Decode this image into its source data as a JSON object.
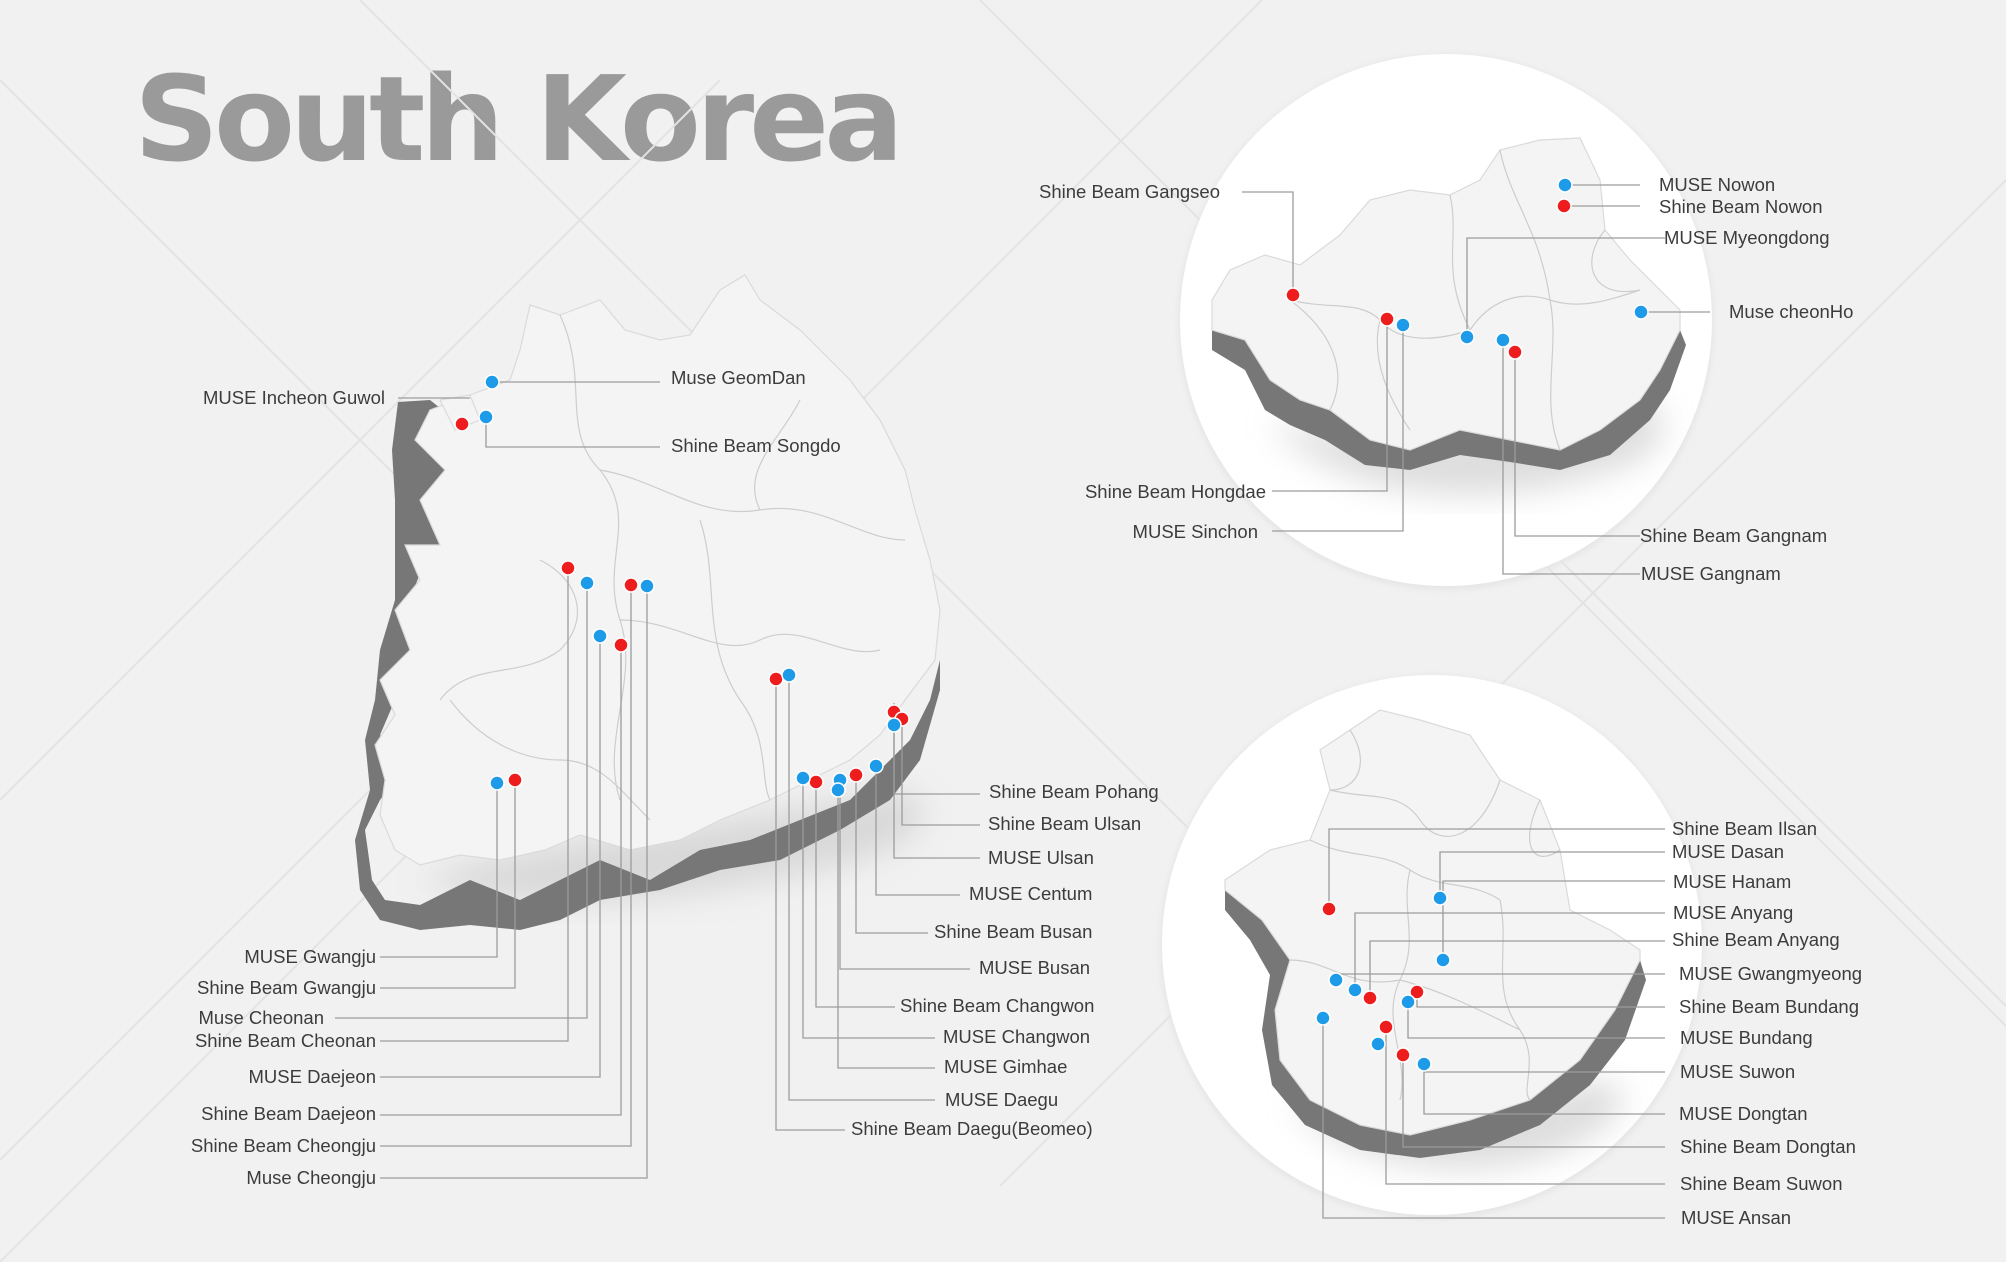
{
  "title": "South Korea",
  "legend_colors": {
    "muse": "#1e9be8",
    "shine_beam": "#ee1d1d"
  },
  "labels": {
    "muse_geomdan": "Muse GeomDan",
    "muse_incheon_guwol": "MUSE Incheon Guwol",
    "shine_beam_songdo": "Shine Beam Songdo",
    "shine_beam_pohang": "Shine Beam Pohang",
    "shine_beam_ulsan": "Shine Beam Ulsan",
    "muse_ulsan": "MUSE Ulsan",
    "muse_centum": "MUSE Centum",
    "shine_beam_busan": "Shine Beam Busan",
    "muse_busan": "MUSE Busan",
    "shine_beam_changwon": "Shine Beam Changwon",
    "muse_changwon": "MUSE Changwon",
    "muse_gimhae": "MUSE Gimhae",
    "muse_daegu": "MUSE Daegu",
    "shine_beam_daegu_beomeo": "Shine Beam Daegu(Beomeo)",
    "muse_gwangju": "MUSE Gwangju",
    "shine_beam_gwangju": "Shine Beam Gwangju",
    "muse_cheonan": "Muse Cheonan",
    "shine_beam_cheonan": "Shine Beam Cheonan",
    "muse_daejeon": "MUSE Daejeon",
    "shine_beam_daejeon": "Shine Beam Daejeon",
    "shine_beam_cheongju": "Shine Beam Cheongju",
    "muse_cheongju": "Muse Cheongju",
    "shine_beam_gangseo": "Shine Beam Gangseo",
    "muse_nowon": "MUSE Nowon",
    "shine_beam_nowon": "Shine Beam Nowon",
    "muse_myeongdong": "MUSE Myeongdong",
    "muse_cheonho": "Muse cheonHo",
    "shine_beam_hongdae": "Shine Beam Hongdae",
    "muse_sinchon": "MUSE Sinchon",
    "shine_beam_gangnam": "Shine Beam Gangnam",
    "muse_gangnam": "MUSE Gangnam",
    "shine_beam_ilsan": "Shine Beam Ilsan",
    "muse_dasan": "MUSE Dasan",
    "muse_hanam": "MUSE Hanam",
    "muse_anyang": "MUSE Anyang",
    "shine_beam_anyang": "Shine Beam Anyang",
    "muse_gwangmyeong": "MUSE Gwangmyeong",
    "shine_beam_bundang": "Shine Beam Bundang",
    "muse_bundang": "MUSE Bundang",
    "muse_suwon": "MUSE Suwon",
    "muse_dongtan": "MUSE Dongtan",
    "shine_beam_dongtan": "Shine Beam Dongtan",
    "shine_beam_suwon": "Shine Beam Suwon",
    "muse_ansan": "MUSE Ansan"
  }
}
